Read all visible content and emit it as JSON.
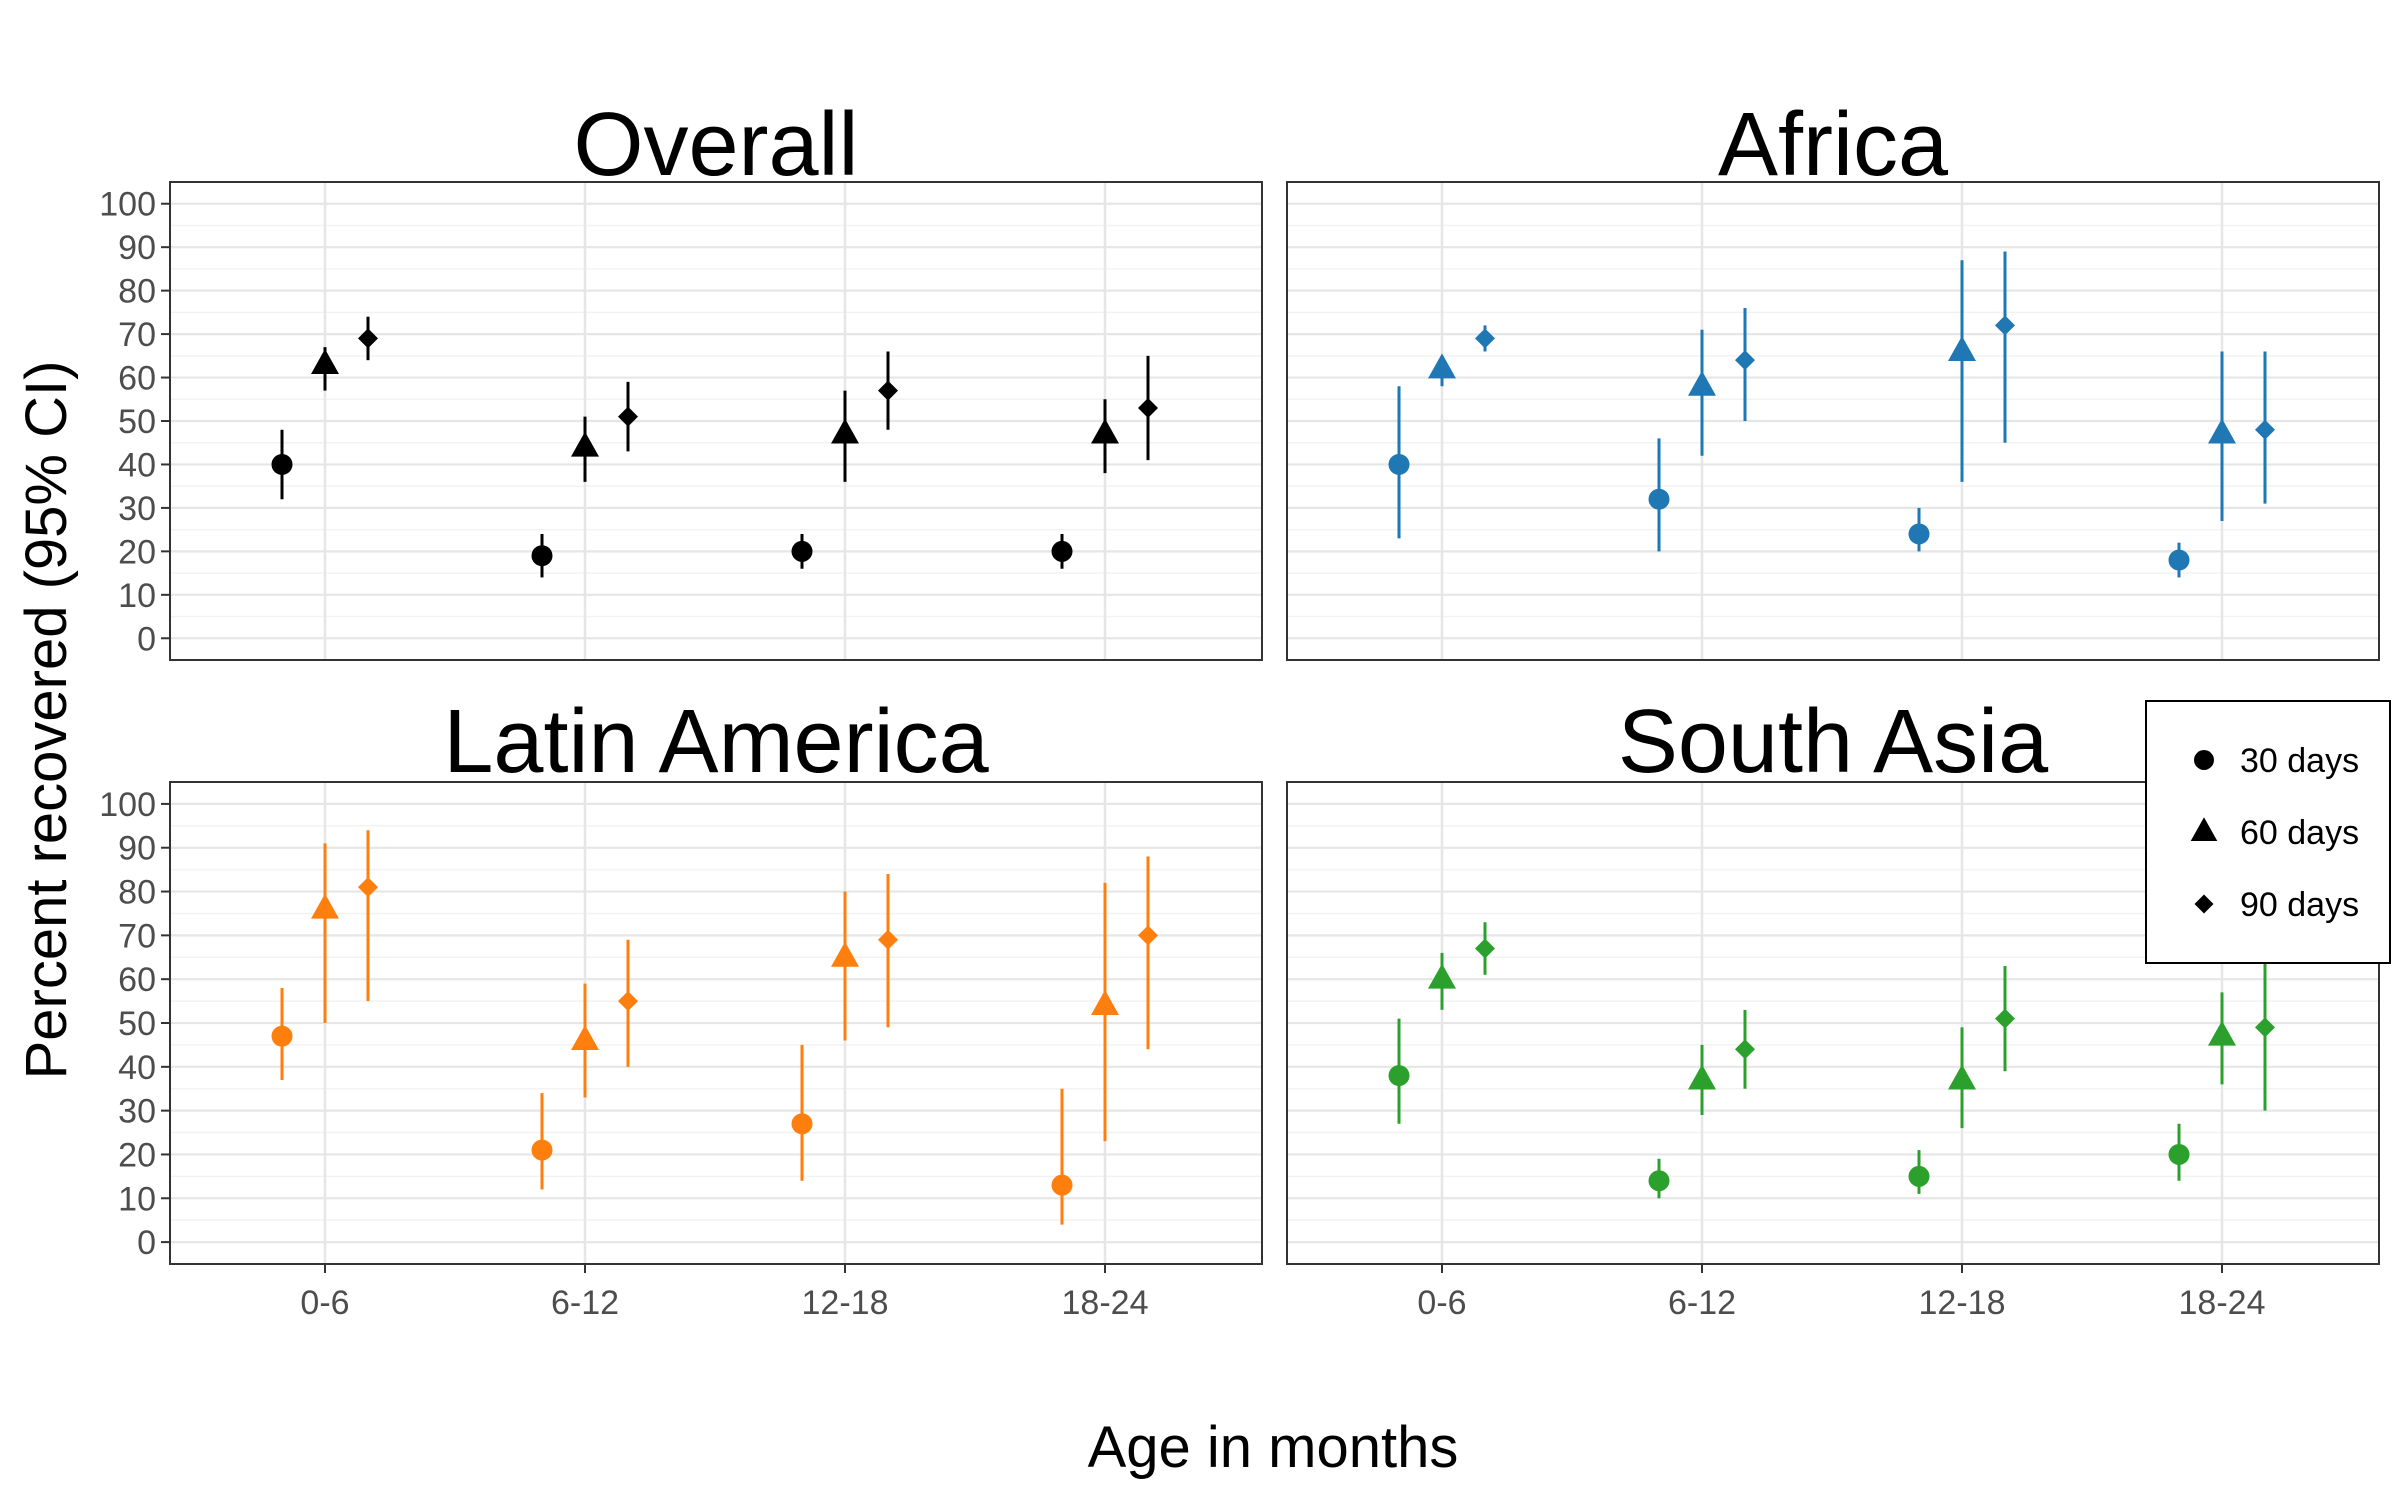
{
  "chart_data": {
    "type": "scatter",
    "ylabel": "Percent recovered (95% CI)",
    "xlabel": "Age in months",
    "categories": [
      "0-6",
      "6-12",
      "12-18",
      "18-24"
    ],
    "y_ticks": [
      "0",
      "10",
      "20",
      "30",
      "40",
      "50",
      "60",
      "70",
      "80",
      "90",
      "100"
    ],
    "ylim": [
      -5,
      105
    ],
    "grid": true,
    "legend": {
      "position": "right",
      "entries": [
        {
          "label": "30 days",
          "shape": "circle"
        },
        {
          "label": "60 days",
          "shape": "triangle"
        },
        {
          "label": "90 days",
          "shape": "diamond"
        }
      ]
    },
    "panels": [
      {
        "title": "Overall",
        "color": "#000000",
        "series": [
          {
            "name": "30 days",
            "values": [
              40,
              19,
              20,
              20
            ],
            "lower": [
              32,
              14,
              16,
              16
            ],
            "upper": [
              48,
              24,
              24,
              24
            ]
          },
          {
            "name": "60 days",
            "values": [
              63,
              44,
              47,
              47
            ],
            "lower": [
              57,
              36,
              36,
              38
            ],
            "upper": [
              67,
              51,
              57,
              55
            ]
          },
          {
            "name": "90 days",
            "values": [
              69,
              51,
              57,
              53
            ],
            "lower": [
              64,
              43,
              48,
              41
            ],
            "upper": [
              74,
              59,
              66,
              65
            ]
          }
        ]
      },
      {
        "title": "Africa",
        "color": "#1f77b4",
        "series": [
          {
            "name": "30 days",
            "values": [
              40,
              32,
              24,
              18
            ],
            "lower": [
              23,
              20,
              20,
              14
            ],
            "upper": [
              58,
              46,
              30,
              22
            ]
          },
          {
            "name": "60 days",
            "values": [
              62,
              58,
              66,
              47
            ],
            "lower": [
              58,
              42,
              36,
              27
            ],
            "upper": [
              64,
              71,
              87,
              66
            ]
          },
          {
            "name": "90 days",
            "values": [
              69,
              64,
              72,
              48
            ],
            "lower": [
              66,
              50,
              45,
              31
            ],
            "upper": [
              72,
              76,
              89,
              66
            ]
          }
        ]
      },
      {
        "title": "Latin America",
        "color": "#ff7f0e",
        "series": [
          {
            "name": "30 days",
            "values": [
              47,
              21,
              27,
              13
            ],
            "lower": [
              37,
              12,
              14,
              4
            ],
            "upper": [
              58,
              34,
              45,
              35
            ]
          },
          {
            "name": "60 days",
            "values": [
              76,
              46,
              65,
              54
            ],
            "lower": [
              50,
              33,
              46,
              23
            ],
            "upper": [
              91,
              59,
              80,
              82
            ]
          },
          {
            "name": "90 days",
            "values": [
              81,
              55,
              69,
              70
            ],
            "lower": [
              55,
              40,
              49,
              44
            ],
            "upper": [
              94,
              69,
              84,
              88
            ]
          }
        ]
      },
      {
        "title": "South Asia",
        "color": "#2ca02c",
        "series": [
          {
            "name": "30 days",
            "values": [
              38,
              14,
              15,
              20
            ],
            "lower": [
              27,
              10,
              11,
              14
            ],
            "upper": [
              51,
              19,
              21,
              27
            ]
          },
          {
            "name": "60 days",
            "values": [
              60,
              37,
              37,
              47
            ],
            "lower": [
              53,
              29,
              26,
              36
            ],
            "upper": [
              66,
              45,
              49,
              57
            ]
          },
          {
            "name": "90 days",
            "values": [
              67,
              44,
              51,
              49
            ],
            "lower": [
              61,
              35,
              39,
              30
            ],
            "upper": [
              73,
              53,
              63,
              66
            ]
          }
        ]
      }
    ]
  }
}
